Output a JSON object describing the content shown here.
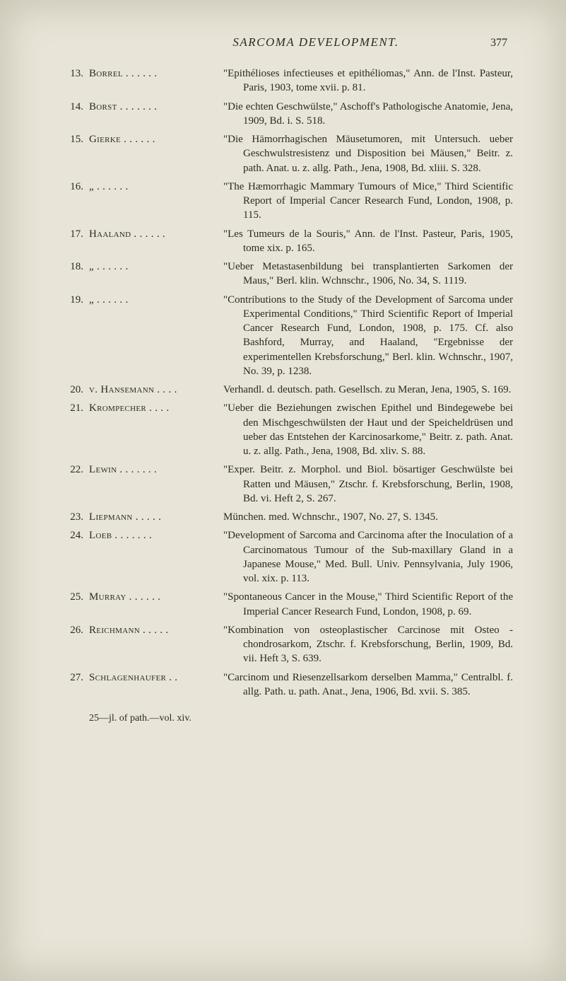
{
  "page": {
    "header_title": "SARCOMA DEVELOPMENT.",
    "number": "377",
    "footer": "25—jl. of path.—vol. xiv."
  },
  "entries": [
    {
      "num": "13.",
      "author": "Borrel . . . . . .",
      "desc": "\"Epithélioses infectieuses et epithéliomas,\" Ann. de l'Inst. Pasteur, Paris, 1903, tome xvii. p. 81."
    },
    {
      "num": "14.",
      "author": "Borst . . . . . . .",
      "desc": "\"Die echten Geschwülste,\" Aschoff's Pathologische Anatomie, Jena, 1909, Bd. i. S. 518."
    },
    {
      "num": "15.",
      "author": "Gierke . . . . . .",
      "desc": "\"Die Hämorrhagischen Mäusetumoren, mit Untersuch. ueber Geschwulstresistenz und Disposition bei Mäusen,\" Beitr. z. path. Anat. u. z. allg. Path., Jena, 1908, Bd. xliii. S. 328."
    },
    {
      "num": "16.",
      "author": "   „    . . . . . .",
      "desc": "\"The Hæmorrhagic Mammary Tumours of Mice,\" Third Scientific Report of Imperial Cancer Research Fund, London, 1908, p. 115."
    },
    {
      "num": "17.",
      "author": "Haaland . . . . . .",
      "desc": "\"Les Tumeurs de la Souris,\" Ann. de l'Inst. Pasteur, Paris, 1905, tome xix. p. 165."
    },
    {
      "num": "18.",
      "author": "   „    . . . . . .",
      "desc": "\"Ueber Metastasenbildung bei transplantierten Sarkomen der Maus,\" Berl. klin. Wchnschr., 1906, No. 34, S. 1119."
    },
    {
      "num": "19.",
      "author": "   „    . . . . . .",
      "desc": "\"Contributions to the Study of the Development of Sarcoma under Experimental Conditions,\" Third Scientific Report of Imperial Cancer Research Fund, London, 1908, p. 175. Cf. also Bashford, Murray, and Haaland, \"Ergebnisse der experimentellen Krebsforschung,\" Berl. klin. Wchnschr., 1907, No. 39, p. 1238."
    },
    {
      "num": "20.",
      "author": "v. Hansemann . . . .",
      "desc": "Verhandl. d. deutsch. path. Gesellsch. zu Meran, Jena, 1905, S. 169."
    },
    {
      "num": "21.",
      "author": "Krompecher . . . .",
      "desc": "\"Ueber die Beziehungen zwischen Epithel und Bindegewebe bei den Mischgeschwülsten der Haut und der Speicheldrüsen und ueber das Entstehen der Karcinosarkome,\" Beitr. z. path. Anat. u. z. allg. Path., Jena, 1908, Bd. xliv. S. 88."
    },
    {
      "num": "22.",
      "author": "Lewin . . . . . . .",
      "desc": "\"Exper. Beitr. z. Morphol. und Biol. bösartiger Geschwülste bei Ratten und Mäusen,\" Ztschr. f. Krebsforschung, Berlin, 1908, Bd. vi. Heft 2, S. 267."
    },
    {
      "num": "23.",
      "author": "Liepmann . . . . .",
      "desc": "München. med. Wchnschr., 1907, No. 27, S. 1345."
    },
    {
      "num": "24.",
      "author": "Loeb . . . . . . .",
      "desc": "\"Development of Sarcoma and Carcinoma after the Inoculation of a Carcinomatous Tumour of the Sub-maxillary Gland in a Japanese Mouse,\" Med. Bull. Univ. Pennsylvania, July 1906, vol. xix. p. 113."
    },
    {
      "num": "25.",
      "author": "Murray . . . . . .",
      "desc": "\"Spontaneous Cancer in the Mouse,\" Third Scientific Report of the Imperial Cancer Research Fund, London, 1908, p. 69."
    },
    {
      "num": "26.",
      "author": "Reichmann . . . . .",
      "desc": "\"Kombination von osteoplastischer Carcinose mit Osteo - chondrosarkom, Ztschr. f. Krebsforschung, Berlin, 1909, Bd. vii. Heft 3, S. 639."
    },
    {
      "num": "27.",
      "author": "Schlagenhaufer . .",
      "desc": "\"Carcinom und Riesenzellsarkom derselben Mamma,\" Centralbl. f. allg. Path. u. path. Anat., Jena, 1906, Bd. xvii. S. 385."
    }
  ]
}
